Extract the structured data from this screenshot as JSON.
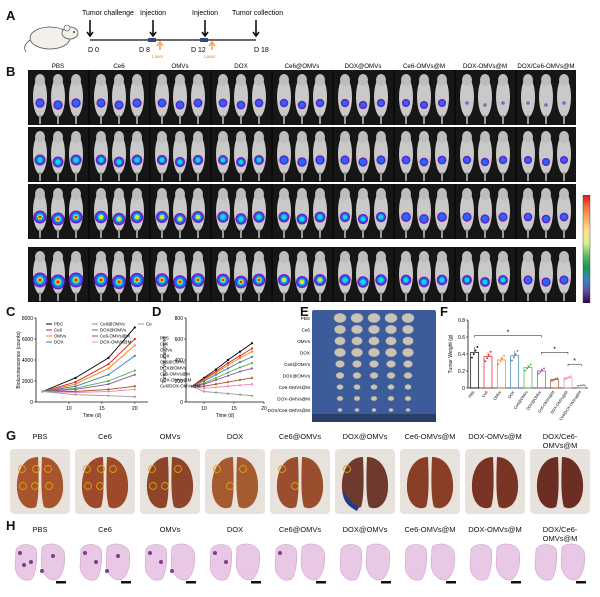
{
  "panels": {
    "A": "A",
    "B": "B",
    "C": "C",
    "D": "D",
    "E": "E",
    "F": "F",
    "G": "G",
    "H": "H"
  },
  "timeline": {
    "events": [
      "Tumor challenge",
      "Injection",
      "Injection",
      "Tumor collection"
    ],
    "days": [
      "D 0",
      "D 8",
      "D 12",
      "D 18"
    ],
    "laser": [
      "Laser",
      "Laser"
    ]
  },
  "groups": [
    "PBS",
    "Ce6",
    "OMVs",
    "DOX",
    "Ce6@OMVs",
    "DOX@OMVs",
    "Ce6-OMVs@M",
    "DOX-OMVs@M",
    "DOX/Ce6-OMVs@M"
  ],
  "colorbar": {
    "colors": [
      "#d7191c",
      "#f46d43",
      "#fdae61",
      "#fee08b",
      "#d9ef8b",
      "#66bd63",
      "#1a9850",
      "#3288bd",
      "#5e4fa2",
      "#2d004b"
    ]
  },
  "series_colors": [
    "#000000",
    "#e41a1c",
    "#ff7f00",
    "#377eb8",
    "#4daf4a",
    "#984ea3",
    "#a65628",
    "#f781bf",
    "#999999"
  ],
  "chart_data": [
    {
      "type": "line",
      "panel": "C",
      "xlabel": "Time (d)",
      "ylabel": "Bioluminescence (counts)",
      "xlim": [
        5,
        22
      ],
      "ylim": [
        0,
        8000
      ],
      "xticks": [
        10,
        15,
        20
      ],
      "yticks": [
        0,
        2000,
        4000,
        6000,
        8000
      ],
      "x": [
        6,
        11,
        16,
        20
      ],
      "legend": [
        "PBS",
        "Ce6",
        "OMVs",
        "DOX",
        "Ce6@OMVs",
        "DOX@OMVs",
        "Ce6-OMVs@M",
        "DOX-OMVs@M",
        "Ce6/DOX-OMVs@M"
      ],
      "series": [
        {
          "values": [
            1000,
            2300,
            4200,
            7100
          ]
        },
        {
          "values": [
            1000,
            1900,
            3600,
            6000
          ]
        },
        {
          "values": [
            1000,
            1700,
            3200,
            5400
          ]
        },
        {
          "values": [
            1000,
            1500,
            2600,
            4400
          ]
        },
        {
          "values": [
            1000,
            1300,
            2000,
            3000
          ]
        },
        {
          "values": [
            1000,
            1200,
            1700,
            2600
          ]
        },
        {
          "values": [
            1000,
            1000,
            1200,
            1500
          ]
        },
        {
          "values": [
            1000,
            900,
            1000,
            1200
          ]
        },
        {
          "values": [
            1000,
            700,
            600,
            500
          ]
        }
      ]
    },
    {
      "type": "line",
      "panel": "D",
      "xlabel": "Time (d)",
      "ylabel": "Tumor Volume (mm³)",
      "xlim": [
        7,
        20
      ],
      "ylim": [
        0,
        800
      ],
      "xticks": [
        10,
        15,
        20
      ],
      "yticks": [
        0,
        200,
        400,
        600,
        800
      ],
      "x": [
        8,
        10,
        12,
        14,
        16,
        18
      ],
      "legend": [
        "PBS",
        "Ce6",
        "OMVs",
        "DOX",
        "Ce6@OMVs",
        "DOX@OMVs",
        "Ce6-OMVs@M",
        "DOX-OMVs@M",
        "Ce6/DOX-OMVs@M"
      ],
      "series": [
        {
          "values": [
            150,
            230,
            310,
            400,
            480,
            560
          ]
        },
        {
          "values": [
            150,
            220,
            290,
            370,
            440,
            510
          ]
        },
        {
          "values": [
            150,
            210,
            280,
            350,
            420,
            480
          ]
        },
        {
          "values": [
            150,
            200,
            260,
            320,
            380,
            430
          ]
        },
        {
          "values": [
            150,
            180,
            230,
            280,
            330,
            370
          ]
        },
        {
          "values": [
            150,
            170,
            210,
            250,
            290,
            320
          ]
        },
        {
          "values": [
            150,
            150,
            170,
            190,
            210,
            230
          ]
        },
        {
          "values": [
            150,
            130,
            140,
            150,
            160,
            170
          ]
        },
        {
          "values": [
            150,
            100,
            90,
            80,
            70,
            60
          ]
        }
      ]
    },
    {
      "type": "bar",
      "panel": "F",
      "ylabel": "Tumor Weight (g)",
      "ylim": [
        0,
        0.8
      ],
      "yticks": [
        0,
        0.2,
        0.4,
        0.6,
        0.8
      ],
      "categories": [
        "PBS",
        "Ce6",
        "OMVs",
        "DOX",
        "Ce6@OMVs",
        "DOX@OMVs",
        "Ce6-OMVs@M",
        "DOX-OMVs@M",
        "Ce6/DOX-OMVs@M"
      ],
      "values": [
        0.42,
        0.37,
        0.33,
        0.38,
        0.24,
        0.2,
        0.1,
        0.12,
        0.03
      ],
      "significance": [
        "*",
        "*",
        "*"
      ]
    }
  ],
  "tumor_photo": {
    "row_labels": [
      "PBS",
      "Ce6",
      "OMVs",
      "DOX",
      "Ce6@OMVs",
      "DOX@OMVs",
      "Ce6-OMVs@M",
      "DOX-OMVs@M",
      "DOX/Ce6-OMVs@M"
    ],
    "tumor_sizes": [
      1.0,
      0.9,
      0.85,
      0.9,
      0.7,
      0.6,
      0.45,
      0.4,
      0.25
    ]
  }
}
